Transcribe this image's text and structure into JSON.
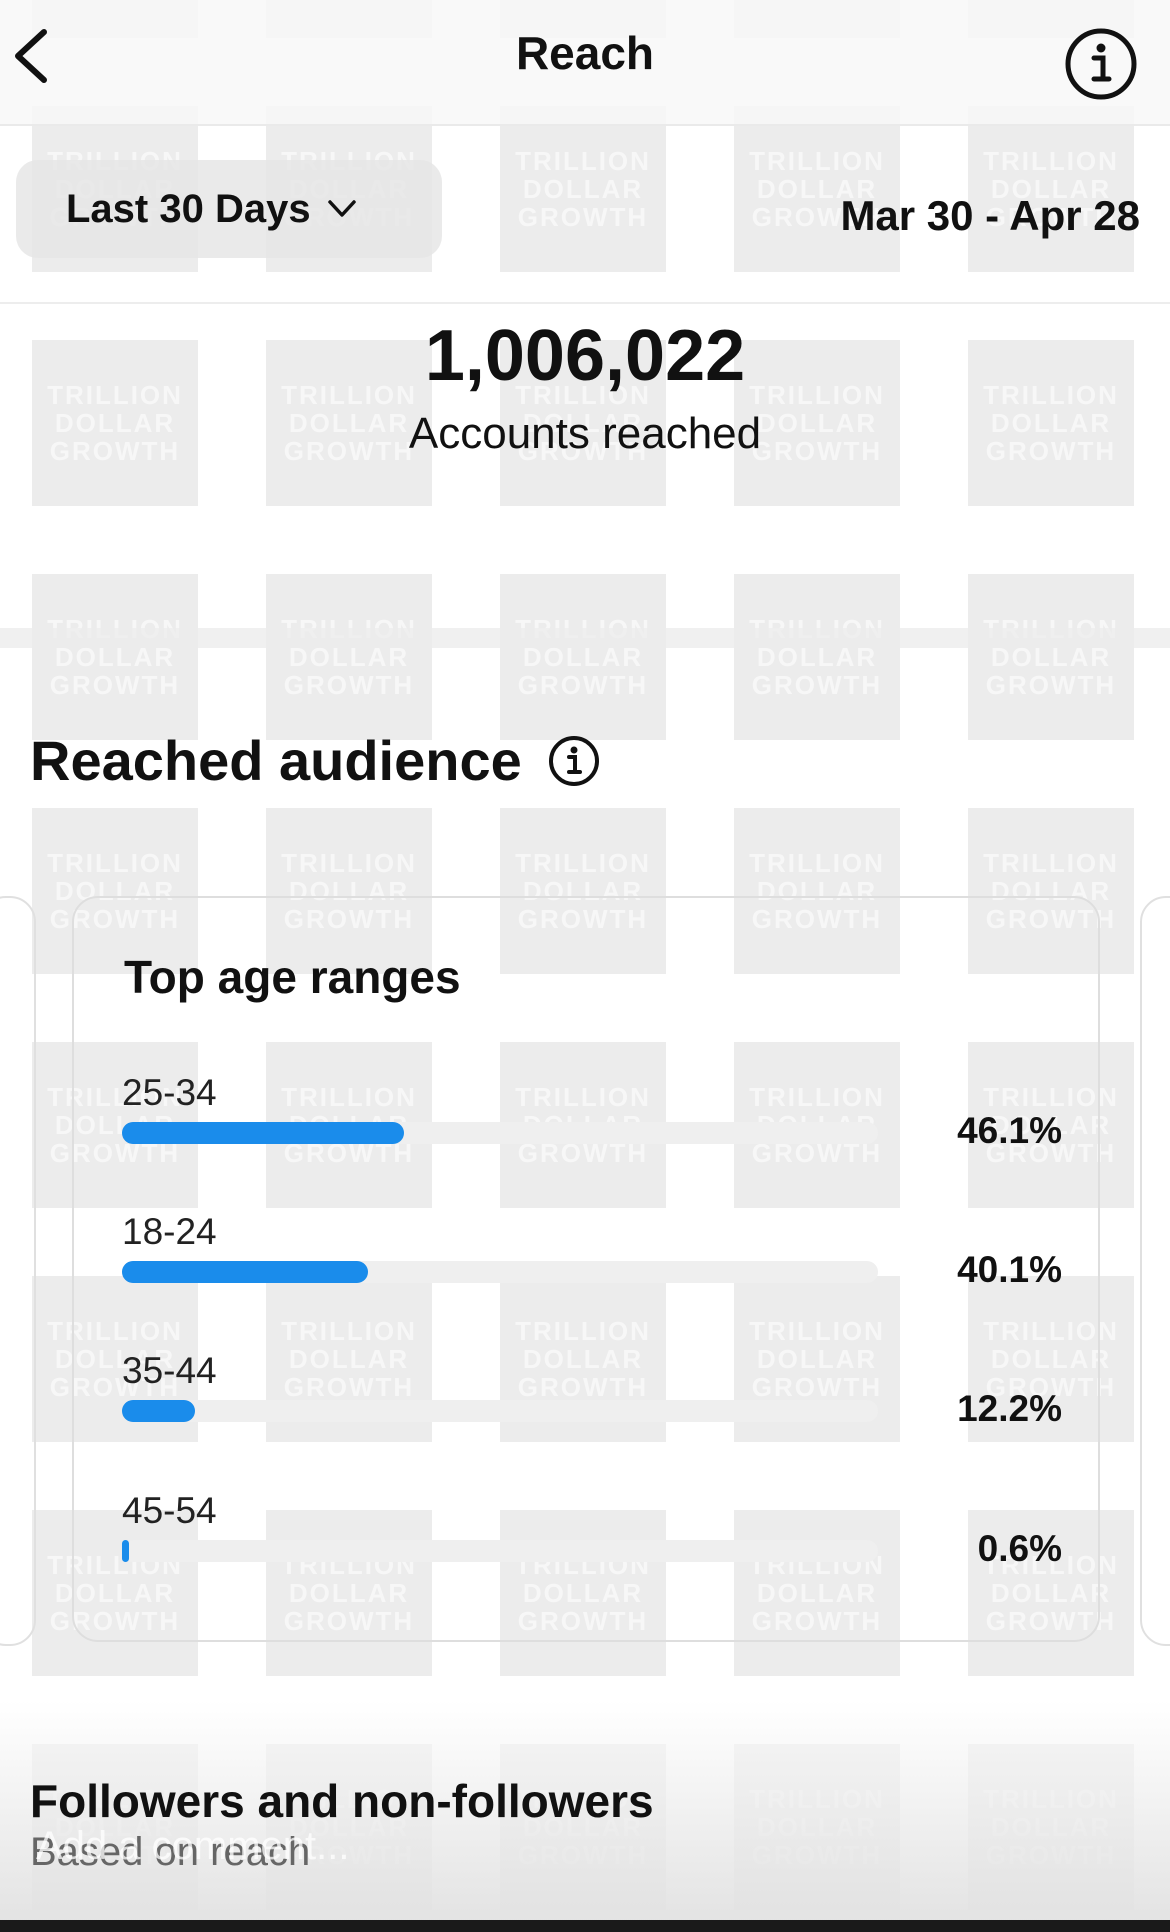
{
  "header": {
    "title": "Reach",
    "back_icon": "chevron-left-icon",
    "info_icon": "info-icon"
  },
  "filter": {
    "range_label": "Last 30 Days",
    "range_icon": "chevron-down-icon",
    "date_range": "Mar 30 - Apr 28"
  },
  "metric": {
    "value": "1,006,022",
    "label": "Accounts reached"
  },
  "audience": {
    "section_title": "Reached audience",
    "card_title": "Top age ranges",
    "ranges": [
      {
        "label": "25-34",
        "percent_text": "46.1%",
        "fill_fraction": 0.373
      },
      {
        "label": "18-24",
        "percent_text": "40.1%",
        "fill_fraction": 0.325
      },
      {
        "label": "35-44",
        "percent_text": "12.2%",
        "fill_fraction": 0.097
      },
      {
        "label": "45-54",
        "percent_text": "0.6%",
        "fill_fraction": 0.009
      }
    ],
    "bar_color": "#1a8ceb"
  },
  "followers": {
    "title": "Followers and non-followers",
    "subtitle": "Based on reach"
  },
  "comment": {
    "placeholder": "Add a comment..."
  },
  "watermark": {
    "lines": [
      "TRILLION",
      "DOLLAR",
      "GROWTH"
    ]
  }
}
